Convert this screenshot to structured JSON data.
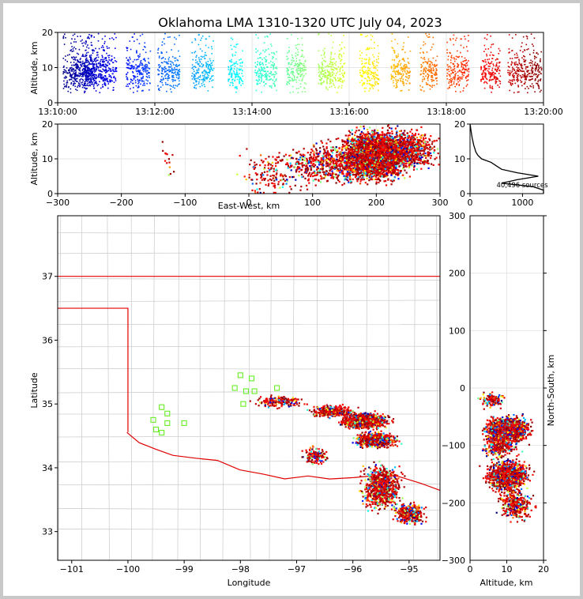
{
  "title": "Oklahoma LMA 1310-1320 UTC July 04, 2023",
  "colors": {
    "border_state": "#e00000",
    "county": "#c8c8c8",
    "panel_frame": "#000000",
    "background": "#ffffff",
    "sq_marker": "#66ee22"
  },
  "chart_data": [
    {
      "id": "time-height",
      "type": "scatter",
      "ylabel": "Altitude, km",
      "ylim": [
        0,
        20
      ],
      "yticks": [
        "0",
        "10",
        "20"
      ],
      "xlim": [
        "13:10:00",
        "13:20:00"
      ],
      "xticks": [
        "13:10:00",
        "13:12:00",
        "13:14:00",
        "13:16:00",
        "13:18:00",
        "13:20:00"
      ],
      "colormap": "jet by time",
      "bursts": [
        [
          0.1,
          0.7,
          0.006
        ],
        [
          0.3,
          0.8,
          0.012
        ],
        [
          0.55,
          1.0,
          0.01
        ],
        [
          0.9,
          1.2,
          0.006
        ],
        [
          1.4,
          1.55,
          0.005
        ],
        [
          1.55,
          1.9,
          0.016
        ],
        [
          2.05,
          2.5,
          0.012
        ],
        [
          2.75,
          3.2,
          0.01
        ],
        [
          3.5,
          3.8,
          0.008
        ],
        [
          4.05,
          4.5,
          0.01
        ],
        [
          4.7,
          5.1,
          0.012
        ],
        [
          5.35,
          5.9,
          0.01
        ],
        [
          6.2,
          6.6,
          0.012
        ],
        [
          6.85,
          7.25,
          0.012
        ],
        [
          7.45,
          7.8,
          0.01
        ],
        [
          8.0,
          8.45,
          0.012
        ],
        [
          8.7,
          9.1,
          0.014
        ],
        [
          9.25,
          9.95,
          0.022
        ]
      ]
    },
    {
      "id": "ew-altitude",
      "type": "scatter",
      "xlabel": "East-West, km",
      "ylabel": "Altitude, km",
      "xlim": [
        -300,
        300
      ],
      "ylim": [
        0,
        20
      ],
      "xticks": [
        "−300",
        "−200",
        "−100",
        "0",
        "100",
        "200",
        "300"
      ],
      "yticks": [
        "0",
        "10",
        "20"
      ],
      "clusters": [
        [
          195,
          11,
          45,
          6,
          3200
        ],
        [
          240,
          13,
          50,
          5,
          900
        ],
        [
          120,
          9,
          55,
          5,
          500
        ],
        [
          40,
          6,
          50,
          6,
          160
        ],
        [
          -130,
          10,
          10,
          6,
          14
        ]
      ]
    },
    {
      "id": "altitude-histogram",
      "type": "line",
      "xlim": [
        0,
        1400
      ],
      "ylim": [
        0,
        20
      ],
      "xticks": [
        "0",
        "1000"
      ],
      "yticks": [
        "0",
        "10",
        "20"
      ],
      "annotation": "40,496 sources",
      "profile": [
        [
          0,
          1400
        ],
        [
          1,
          1400
        ],
        [
          2,
          1200
        ],
        [
          3,
          600
        ],
        [
          4,
          900
        ],
        [
          5,
          1300
        ],
        [
          6,
          900
        ],
        [
          7,
          600
        ],
        [
          8,
          500
        ],
        [
          9,
          400
        ],
        [
          10,
          220
        ],
        [
          11,
          150
        ],
        [
          12,
          110
        ],
        [
          13,
          90
        ],
        [
          14,
          70
        ],
        [
          15,
          55
        ],
        [
          16,
          40
        ],
        [
          17,
          30
        ],
        [
          18,
          20
        ],
        [
          19,
          10
        ],
        [
          20,
          0
        ]
      ]
    },
    {
      "id": "plan-view",
      "type": "scatter",
      "xlabel": "Longitude",
      "ylabel": "Latitude",
      "xlim": [
        -101.25,
        -94.45
      ],
      "ylim": [
        32.55,
        37.95
      ],
      "xticks": [
        "−101",
        "−100",
        "−99",
        "−98",
        "−97",
        "−96",
        "−95"
      ],
      "yticks": [
        "33",
        "34",
        "35",
        "36",
        "37"
      ],
      "clusters": [
        [
          -95.8,
          34.75,
          0.35,
          0.1,
          1200
        ],
        [
          -95.6,
          34.45,
          0.3,
          0.1,
          700
        ],
        [
          -95.5,
          33.7,
          0.3,
          0.3,
          800
        ],
        [
          -95.0,
          33.3,
          0.25,
          0.15,
          300
        ],
        [
          -96.4,
          34.9,
          0.35,
          0.08,
          300
        ],
        [
          -97.3,
          35.05,
          0.4,
          0.08,
          160
        ],
        [
          -96.7,
          34.2,
          0.2,
          0.12,
          120
        ]
      ],
      "square_markers": [
        [
          -98.0,
          35.45
        ],
        [
          -97.8,
          35.4
        ],
        [
          -98.1,
          35.25
        ],
        [
          -97.9,
          35.2
        ],
        [
          -97.75,
          35.2
        ],
        [
          -97.95,
          35.0
        ],
        [
          -97.35,
          35.25
        ],
        [
          -99.4,
          34.95
        ],
        [
          -99.3,
          34.85
        ],
        [
          -99.55,
          34.75
        ],
        [
          -99.3,
          34.7
        ],
        [
          -99.0,
          34.7
        ],
        [
          -99.5,
          34.6
        ],
        [
          -99.4,
          34.55
        ]
      ]
    },
    {
      "id": "ns-altitude",
      "type": "scatter",
      "xlabel": "Altitude, km",
      "ylabel": "North-South, km",
      "xlim": [
        0,
        20
      ],
      "ylim": [
        -300,
        300
      ],
      "xticks": [
        "0",
        "10",
        "20"
      ],
      "yticks": [
        "300",
        "200",
        "100",
        "0",
        "−100",
        "−200",
        "−300"
      ],
      "clusters": [
        [
          10,
          -70,
          5,
          18,
          1500
        ],
        [
          10,
          -150,
          5,
          22,
          1100
        ],
        [
          12,
          -200,
          4,
          25,
          350
        ],
        [
          8,
          -100,
          4,
          15,
          300
        ],
        [
          6,
          -20,
          3,
          12,
          120
        ]
      ]
    }
  ]
}
